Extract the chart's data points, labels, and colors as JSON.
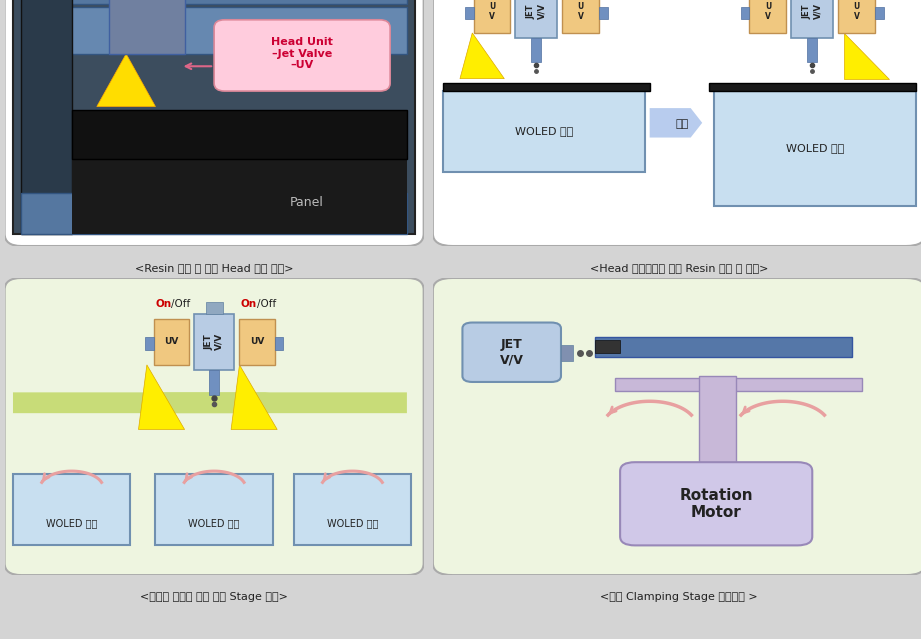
{
  "caption1": "<Resin 도포 및 경화 Head 유닛 형상>",
  "caption2": "<Head 이송방향에 따른 Resin 도포 및 경화>",
  "caption3": "<생산성 향상을 위한 다수 Stage 구축>",
  "caption4": "<모듈 Clamping Stage 구동형상 >",
  "bg_color": "#d4d4d4",
  "panel1_bg": "#ffffff",
  "panel2_bg": "#ffffff",
  "panel3_bg": "#eef5e0",
  "panel4_bg": "#eef5e0",
  "flow_arrow_color": "#c8dc78",
  "uv_color": "#f0c880",
  "jet_color": "#b8cce4",
  "blue_box": "#b8d4e8",
  "rotate_arrow_color": "#b8ccee",
  "woled_box": "#c8dff0",
  "motor_box": "#d0c8e8",
  "green_arrow": "#c8dc78",
  "pink_arrow": "#e8a0a0"
}
